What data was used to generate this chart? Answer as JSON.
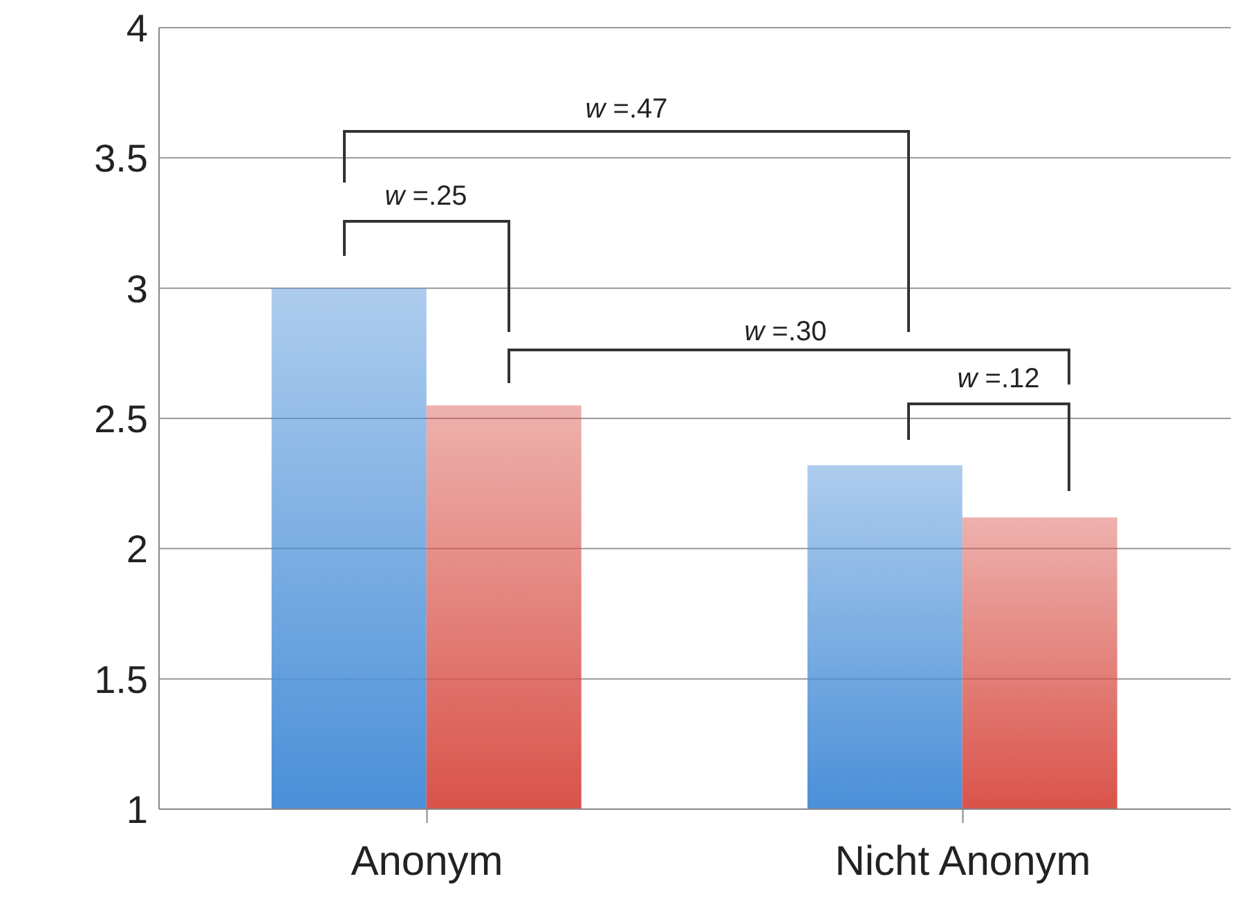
{
  "chart_data": {
    "type": "bar",
    "categories": [
      "Anonym",
      "Nicht Anonym"
    ],
    "series": [
      {
        "color": "#4a8fd8",
        "values": [
          3.0,
          2.32
        ]
      },
      {
        "color": "#d9534a",
        "values": [
          2.55,
          2.12
        ]
      }
    ],
    "ylim": [
      1,
      4
    ],
    "yticks": [
      1,
      1.5,
      2,
      2.5,
      3,
      3.5,
      4
    ],
    "grid": "y",
    "annotations": [
      "w =.47",
      "w =.25",
      "w =.30",
      "w =.12"
    ]
  }
}
